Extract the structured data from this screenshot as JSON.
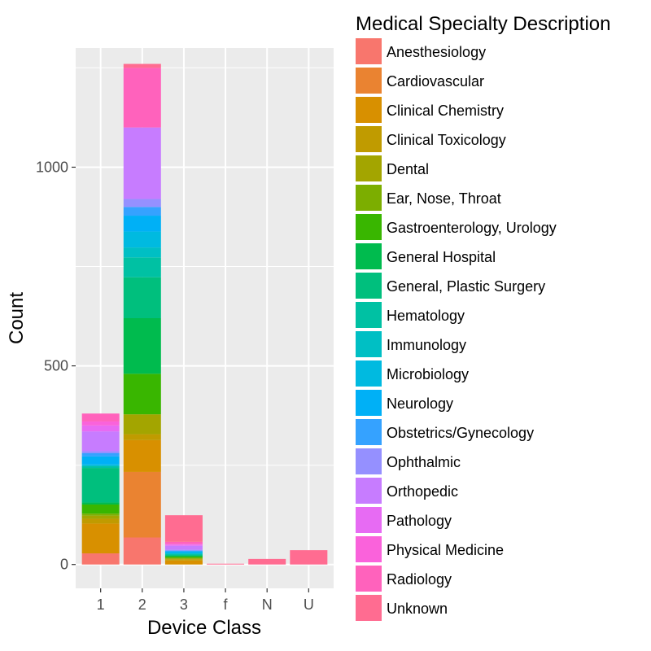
{
  "chart_data": {
    "type": "bar",
    "stacked": true,
    "title": "",
    "xlabel": "Device Class",
    "ylabel": "Count",
    "ylim": [
      -60,
      1300
    ],
    "yticks": [
      0,
      500,
      1000
    ],
    "grid": true,
    "legend_position": "right",
    "legend_title": "Medical Specialty Description",
    "categories": [
      "1",
      "2",
      "3",
      "f",
      "N",
      "U"
    ],
    "series": [
      {
        "name": "Anesthesiology",
        "color": "#F8766D",
        "values": [
          28,
          68,
          0,
          0,
          0,
          0
        ]
      },
      {
        "name": "Cardiovascular",
        "color": "#EA8331",
        "values": [
          0,
          165,
          0,
          0,
          0,
          0
        ]
      },
      {
        "name": "Clinical Chemistry",
        "color": "#D89000",
        "values": [
          75,
          80,
          10,
          0,
          0,
          0
        ]
      },
      {
        "name": "Clinical Toxicology",
        "color": "#C09B00",
        "values": [
          12,
          15,
          3,
          0,
          0,
          0
        ]
      },
      {
        "name": "Dental",
        "color": "#A3A500",
        "values": [
          8,
          50,
          2,
          0,
          0,
          0
        ]
      },
      {
        "name": "Ear, Nose, Throat",
        "color": "#7CAE00",
        "values": [
          5,
          0,
          2,
          0,
          0,
          0
        ]
      },
      {
        "name": "Gastroenterology, Urology",
        "color": "#39B600",
        "values": [
          23,
          102,
          3,
          0,
          0,
          0
        ]
      },
      {
        "name": "General Hospital",
        "color": "#00BB4E",
        "values": [
          5,
          140,
          2,
          0,
          0,
          0
        ]
      },
      {
        "name": "General, Plastic Surgery",
        "color": "#00BF7D",
        "values": [
          87,
          103,
          2,
          0,
          0,
          0
        ]
      },
      {
        "name": "Hematology",
        "color": "#00C1A3",
        "values": [
          5,
          50,
          2,
          0,
          0,
          0
        ]
      },
      {
        "name": "Immunology",
        "color": "#00BFC4",
        "values": [
          0,
          25,
          2,
          0,
          0,
          0
        ]
      },
      {
        "name": "Microbiology",
        "color": "#00BAE0",
        "values": [
          4,
          40,
          2,
          0,
          0,
          0
        ]
      },
      {
        "name": "Neurology",
        "color": "#00B0F6",
        "values": [
          20,
          40,
          3,
          0,
          0,
          0
        ]
      },
      {
        "name": "Obstetrics/Gynecology",
        "color": "#35A2FF",
        "values": [
          8,
          22,
          2,
          0,
          0,
          0
        ]
      },
      {
        "name": "Ophthalmic",
        "color": "#9590FF",
        "values": [
          5,
          20,
          2,
          0,
          0,
          0
        ]
      },
      {
        "name": "Orthopedic",
        "color": "#C77CFF",
        "values": [
          50,
          180,
          10,
          0,
          0,
          0
        ]
      },
      {
        "name": "Pathology",
        "color": "#E76BF3",
        "values": [
          15,
          0,
          3,
          0,
          0,
          0
        ]
      },
      {
        "name": "Physical Medicine",
        "color": "#FA62DB",
        "values": [
          10,
          0,
          2,
          0,
          0,
          0
        ]
      },
      {
        "name": "Radiology",
        "color": "#FF62BC",
        "values": [
          20,
          150,
          5,
          0,
          0,
          0
        ]
      },
      {
        "name": "Unknown",
        "color": "#FF6C91",
        "values": [
          0,
          10,
          67,
          2,
          14,
          36
        ]
      }
    ]
  }
}
